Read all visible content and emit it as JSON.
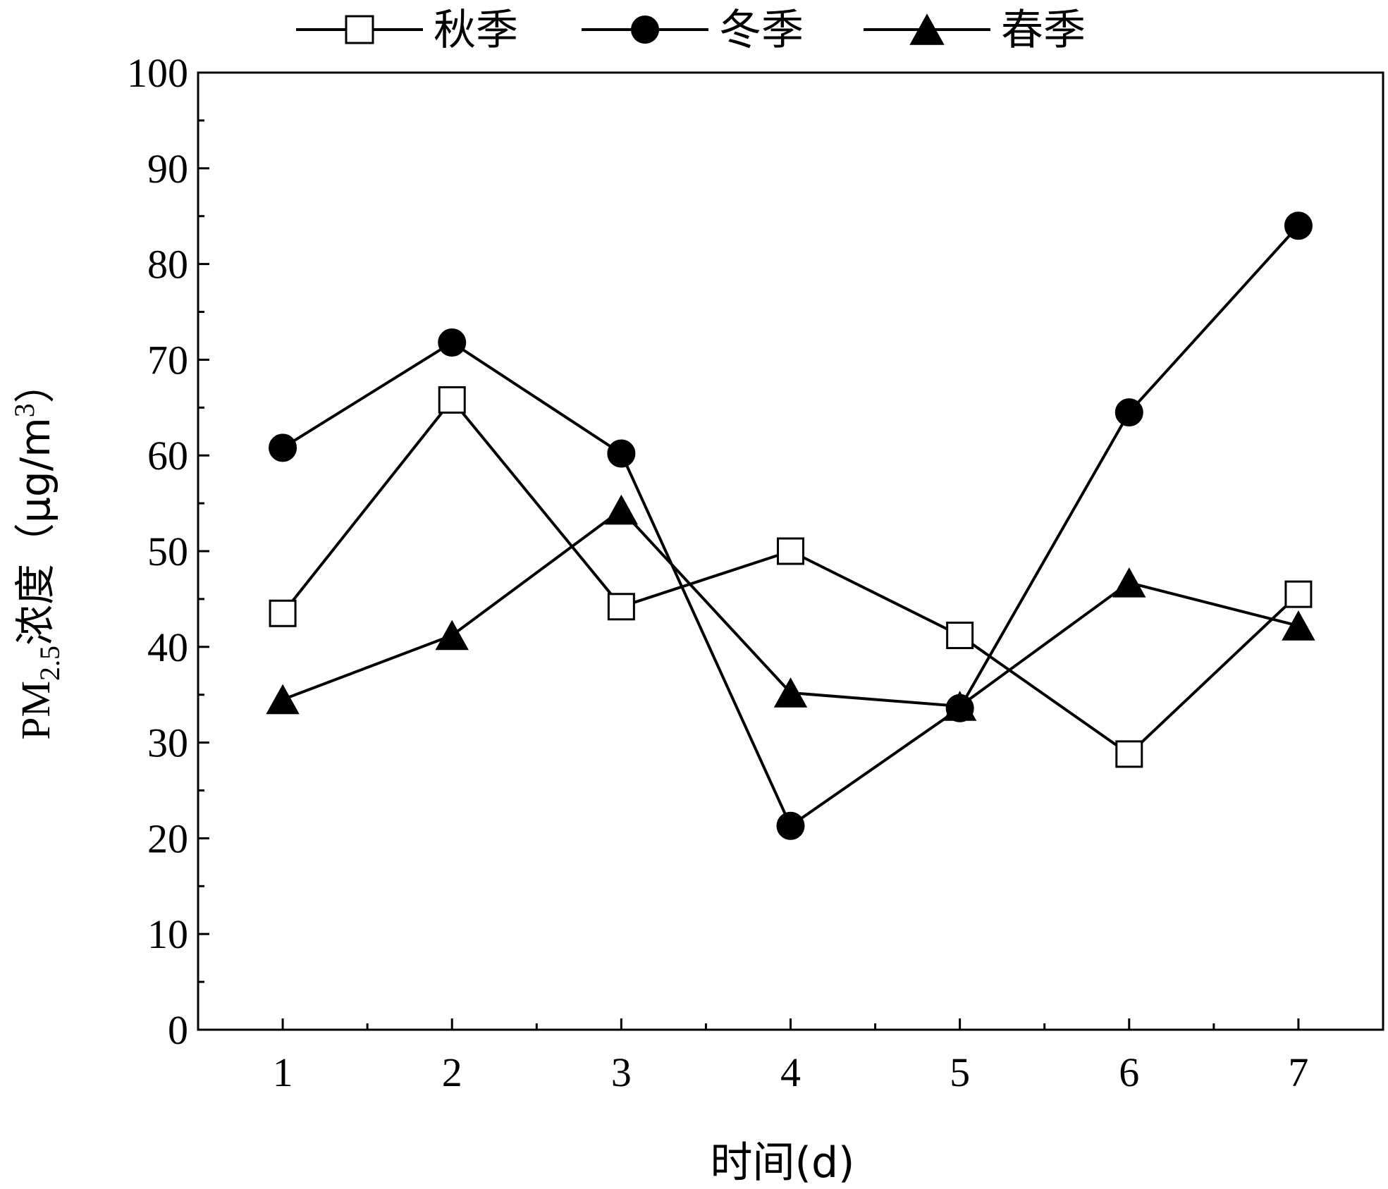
{
  "chart_data": {
    "type": "line",
    "x": [
      1,
      2,
      3,
      4,
      5,
      6,
      7
    ],
    "xticks": [
      "1",
      "2",
      "3",
      "4",
      "5",
      "6",
      "7"
    ],
    "xlim": [
      0.5,
      7.5
    ],
    "ylim": [
      0,
      100
    ],
    "yticks": [
      "0",
      "10",
      "20",
      "30",
      "40",
      "50",
      "60",
      "70",
      "80",
      "90",
      "100"
    ],
    "xlabel": "时间(d)",
    "ylabel": {
      "prefix": "PM",
      "subscript": "2.5",
      "middle": "浓度（μg/m",
      "superscript": "3",
      "suffix": "）"
    },
    "grid": false,
    "legend_position": "top",
    "series": [
      {
        "name": "秋季",
        "marker": "open-square",
        "color": "#000000",
        "values": [
          43.5,
          65.8,
          44.2,
          50.0,
          41.2,
          28.8,
          45.5
        ]
      },
      {
        "name": "冬季",
        "marker": "filled-circle",
        "color": "#000000",
        "values": [
          60.8,
          71.8,
          60.2,
          21.3,
          33.6,
          64.5,
          84.0
        ]
      },
      {
        "name": "春季",
        "marker": "filled-triangle",
        "color": "#000000",
        "values": [
          34.5,
          41.2,
          54.3,
          35.2,
          33.8,
          46.7,
          42.2
        ]
      }
    ]
  }
}
